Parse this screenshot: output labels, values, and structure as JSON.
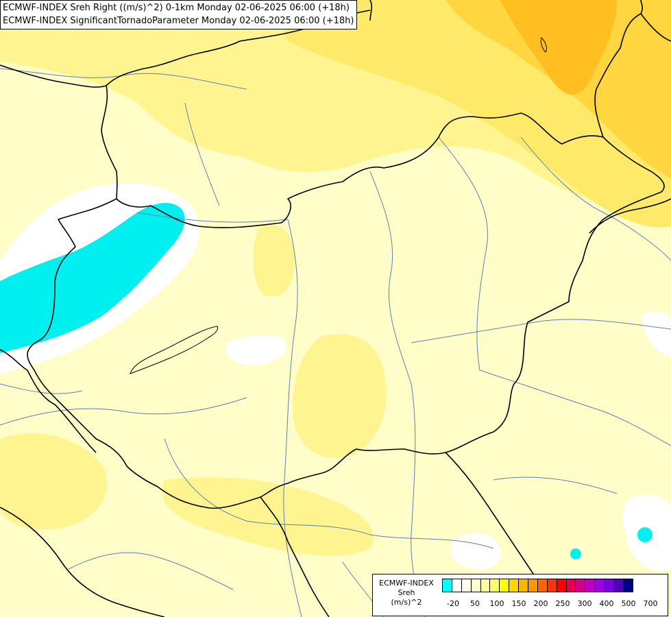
{
  "header": {
    "line1": "ECMWF-INDEX Sreh Right ((m/s)^2) 0-1km Monday 02-06-2025 06:00 (+18h)",
    "line2": "ECMWF-INDEX SignificantTornadoParameter Monday 02-06-2025 06:00 (+18h)"
  },
  "legend": {
    "source": "ECMWF-INDEX",
    "param": "Sreh",
    "unit": "(m/s)^2",
    "colors": [
      "#00ffff",
      "#ffffff",
      "#fffff0",
      "#ffffd0",
      "#ffffa0",
      "#ffff70",
      "#ffff00",
      "#ffd700",
      "#ffb400",
      "#ff9600",
      "#ff6400",
      "#ff3200",
      "#ff0000",
      "#e6004b",
      "#d20087",
      "#be00be",
      "#a000dc",
      "#7800dc",
      "#5000b4",
      "#000080"
    ],
    "tick_labels": [
      "-20",
      "50",
      "100",
      "150",
      "200",
      "250",
      "300",
      "400",
      "500",
      "700"
    ]
  },
  "field_colors": {
    "base": "#fffdc8",
    "light_yellow": "#fff8a8",
    "yellow": "#fff47a",
    "orange_light": "#ffe25a",
    "orange": "#ffc320",
    "cyan": "#00f0f0",
    "white": "#ffffff"
  }
}
